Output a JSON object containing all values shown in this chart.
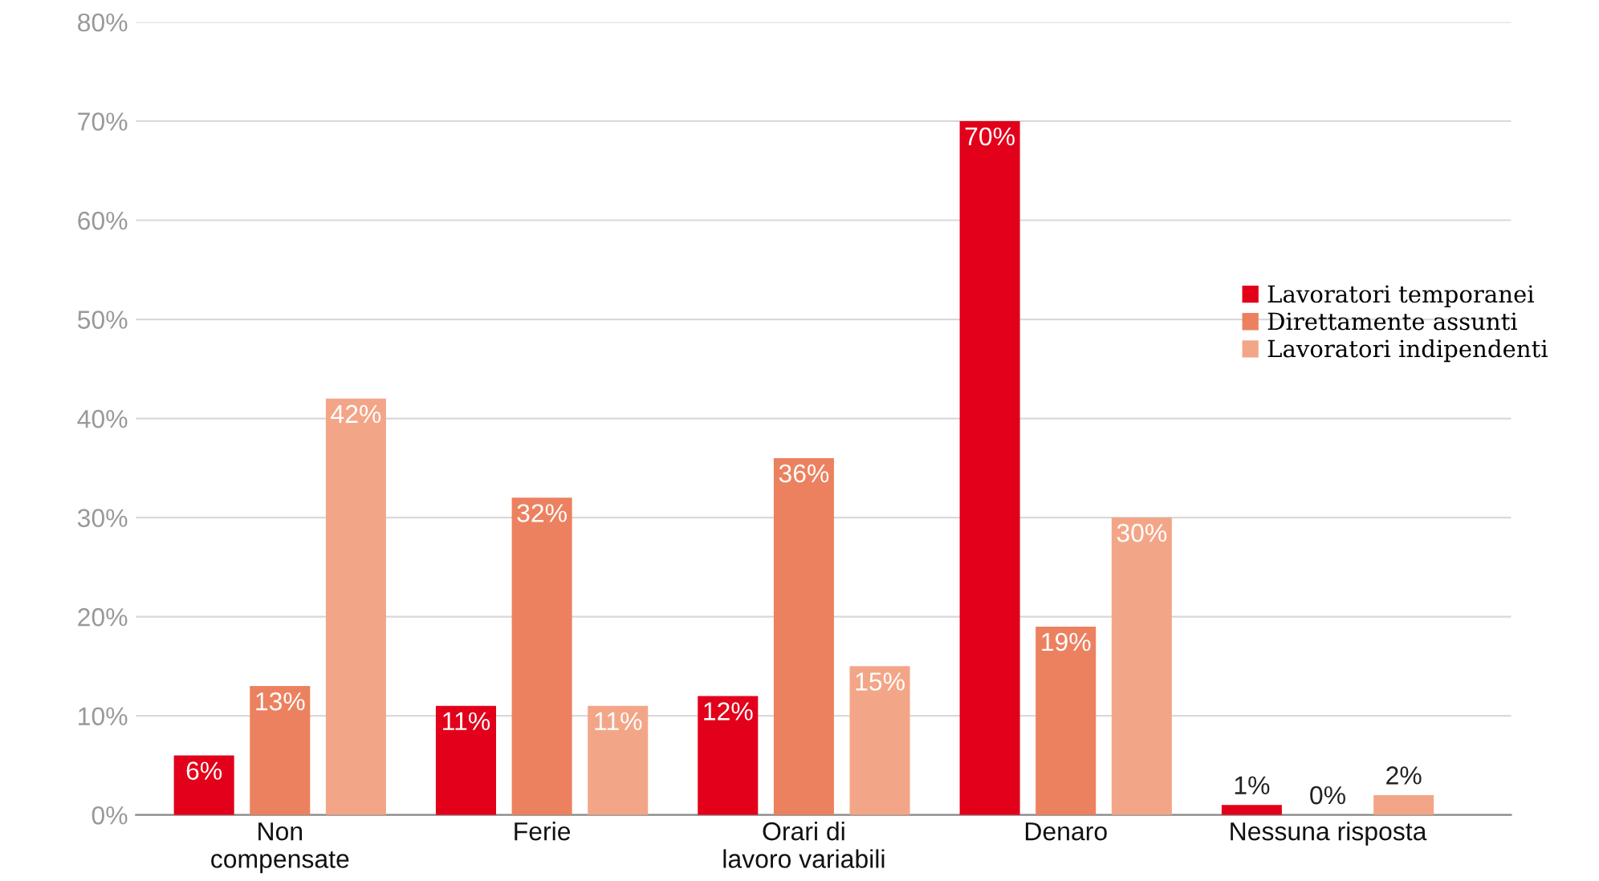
{
  "chart_data": {
    "type": "bar",
    "categories": [
      "Non\ncompensate",
      "Ferie",
      "Orari di\nlavoro variabili",
      "Denaro",
      "Nessuna risposta"
    ],
    "series": [
      {
        "name": "Lavoratori temporanei",
        "color": "#e2001a",
        "values": [
          6,
          11,
          12,
          70,
          1
        ],
        "value_labels": [
          "6%",
          "11%",
          "12%",
          "70%",
          "1%"
        ]
      },
      {
        "name": "Direttamente assunti",
        "color": "#ec8160",
        "values": [
          13,
          32,
          36,
          19,
          0
        ],
        "value_labels": [
          "13%",
          "32%",
          "36%",
          "19%",
          "0%"
        ]
      },
      {
        "name": "Lavoratori indipendenti",
        "color": "#f3a687",
        "values": [
          42,
          11,
          15,
          30,
          2
        ],
        "value_labels": [
          "42%",
          "11%",
          "15%",
          "30%",
          "2%"
        ]
      }
    ],
    "ylim": [
      0,
      80
    ],
    "yticks": [
      {
        "value": 0,
        "label": "0%"
      },
      {
        "value": 10,
        "label": "10%"
      },
      {
        "value": 20,
        "label": "20%"
      },
      {
        "value": 30,
        "label": "30%"
      },
      {
        "value": 40,
        "label": "40%"
      },
      {
        "value": 50,
        "label": "50%"
      },
      {
        "value": 60,
        "label": "60%"
      },
      {
        "value": 70,
        "label": "70%"
      },
      {
        "value": 80,
        "label": "80%"
      }
    ],
    "grid": "y",
    "legend": "right"
  }
}
